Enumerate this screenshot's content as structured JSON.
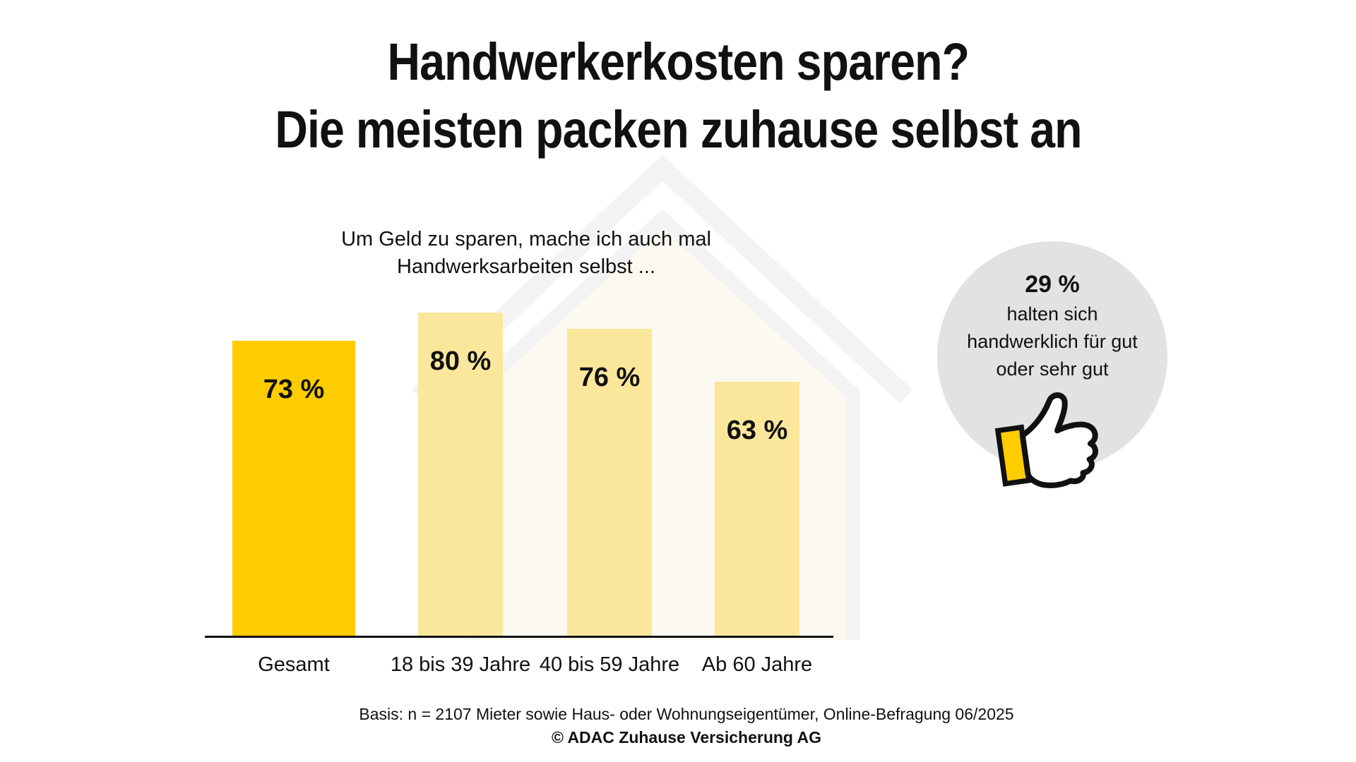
{
  "title": {
    "line1": "Handwerkerkosten sparen?",
    "line2": "Die meisten packen zuhause selbst an"
  },
  "chart_data": {
    "type": "bar",
    "question_lines": [
      "Um Geld zu sparen, mache ich auch mal",
      "Handwerksarbeiten selbst ..."
    ],
    "categories": [
      "Gesamt",
      "18 bis 39 Jahre",
      "40 bis 59 Jahre",
      "Ab 60 Jahre"
    ],
    "values": [
      73,
      80,
      76,
      63
    ],
    "value_labels": [
      "73 %",
      "80 %",
      "76 %",
      "63 %"
    ],
    "bar_colors": [
      "#FFCC00",
      "#FBE79B",
      "#FBE79B",
      "#FBE79B"
    ],
    "ylim": [
      0,
      100
    ],
    "grid": false,
    "value_label_position": "inside-top",
    "xlabel": "",
    "ylabel": ""
  },
  "highlight": {
    "value": "29 %",
    "lines": [
      "halten sich",
      "handwerklich für gut",
      "oder sehr gut"
    ],
    "icon": "thumbs-up-icon"
  },
  "footer": {
    "basis": "Basis: n = 2107 Mieter sowie Haus- oder Wohnungseigentümer, Online-Befragung 06/2025",
    "copyright": "© ADAC Zuhause Versicherung AG"
  },
  "colors": {
    "accent_yellow": "#FFCC00",
    "light_yellow": "#FBE79B",
    "circle_gray": "#E2E2E2",
    "house_stroke": "#F3F3F3",
    "house_fill": "#FCFAF0",
    "text": "#111111"
  }
}
